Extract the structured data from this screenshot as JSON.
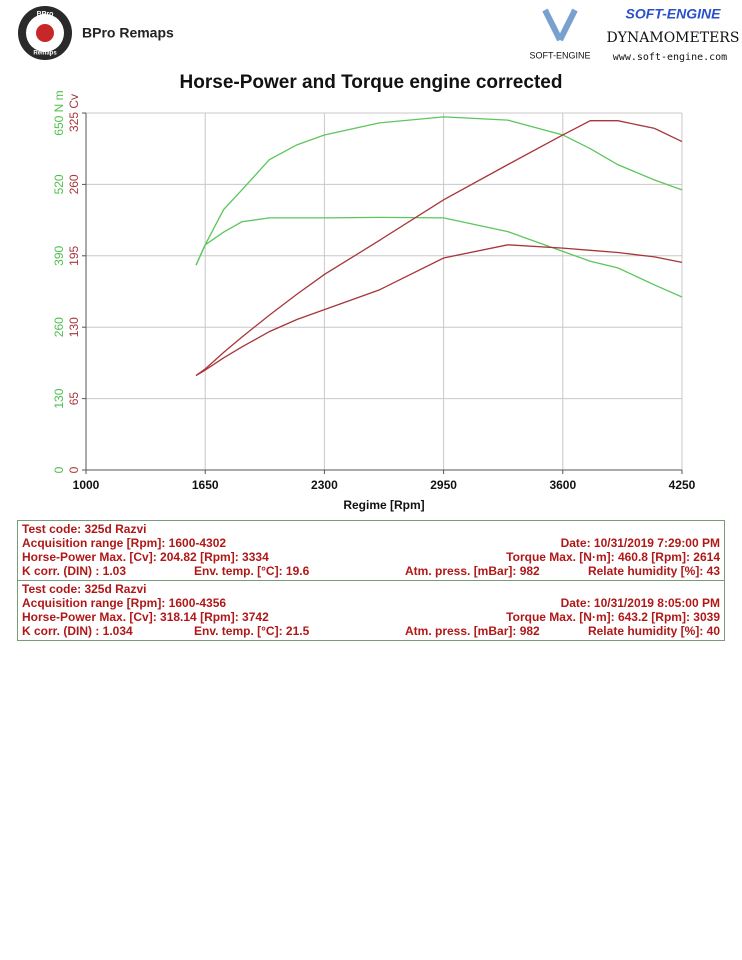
{
  "header": {
    "brand": "BPro Remaps",
    "badge_top": "BPro",
    "badge_bottom": "Remaps",
    "vendor": "SOFT-ENGINE",
    "vendor_sub": "DYNAMOMETERS",
    "vendor_logo": "SOFT-ENGINE",
    "url": "www.soft-engine.com"
  },
  "chart_data": {
    "type": "line",
    "title": "Horse-Power and Torque engine corrected",
    "xlabel": "Regime [Rpm]",
    "x": [
      1600,
      1650,
      1750,
      1850,
      2000,
      2150,
      2300,
      2600,
      2950,
      3300,
      3600,
      3750,
      3900,
      4100,
      4250
    ],
    "xlim": [
      1000,
      4250
    ],
    "xticks": [
      1000,
      1650,
      2300,
      2950,
      3600,
      4250
    ],
    "ylim": [
      0,
      650
    ],
    "yticks": [
      0,
      130,
      260,
      390,
      520,
      {
        "value": 650,
        "label": "650 N m"
      }
    ],
    "y2lim": [
      0,
      325
    ],
    "y2ticks": [
      0,
      65,
      130,
      195,
      260,
      {
        "value": 325,
        "label": "325 Cv"
      }
    ],
    "grid": true,
    "y_color": "#4cbf4c",
    "y2_color": "#a8353a",
    "series": [
      {
        "color": "#5cc65c",
        "values": [
          373,
          410,
          474,
          510,
          565,
          592,
          610,
          632,
          643,
          637,
          610,
          585,
          556,
          528,
          510
        ]
      },
      {
        "color": "#5cc65c",
        "values": [
          373,
          410,
          433,
          452,
          459,
          459,
          459,
          460,
          459,
          434,
          398,
          380,
          368,
          337,
          315
        ]
      },
      {
        "color": "#a8353a",
        "axis": "y2",
        "values": [
          86,
          92,
          107,
          121,
          141,
          160,
          178,
          209,
          246,
          278,
          305,
          318,
          318,
          311,
          299
        ]
      },
      {
        "color": "#a8353a",
        "axis": "y2",
        "values": [
          86,
          91,
          102,
          112,
          126,
          137,
          146,
          164,
          193,
          205,
          202,
          200,
          198,
          194,
          189
        ]
      }
    ]
  },
  "runs": [
    {
      "lines": [
        [
          "Test code: 325d Razvi"
        ],
        [
          "Acquisition range [Rpm]: 1600-4302",
          "Date: 10/31/2019   7:29:00 PM"
        ],
        [
          "Horse-Power Max. [Cv]: 204.82  [Rpm]: 3334",
          "Torque Max. [N·m]: 460.8  [Rpm]: 2614"
        ],
        [
          "K corr. (DIN) : 1.03",
          "Env. temp. [°C]: 19.6",
          "Atm. press. [mBar]: 982",
          "Relate humidity [%]: 43"
        ]
      ]
    },
    {
      "lines": [
        [
          "Test code: 325d Razvi"
        ],
        [
          "Acquisition range [Rpm]: 1600-4356",
          "Date: 10/31/2019   8:05:00 PM"
        ],
        [
          "Horse-Power Max. [Cv]: 318.14  [Rpm]: 3742",
          "Torque Max. [N·m]: 643.2  [Rpm]: 3039"
        ],
        [
          "K corr. (DIN) : 1.034",
          "Env. temp. [°C]: 21.5",
          "Atm. press. [mBar]: 982",
          "Relate humidity [%]: 40"
        ]
      ]
    }
  ]
}
